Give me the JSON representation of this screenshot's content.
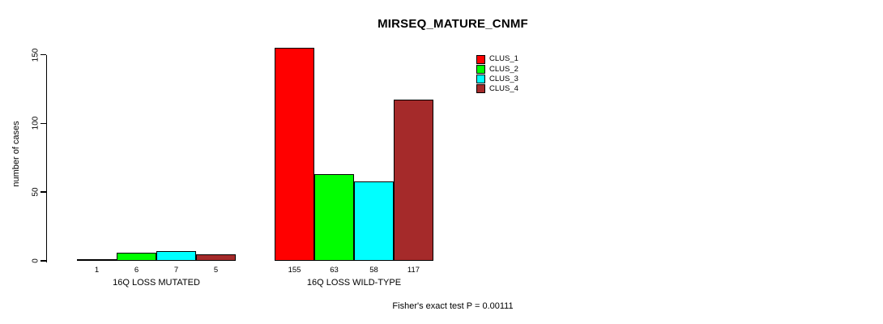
{
  "page": {
    "background_color": "#ffffff",
    "text_color": "#000000"
  },
  "chart_data": {
    "type": "bar",
    "title": "MIRSEQ_MATURE_CNMF",
    "ylabel": "number of cases",
    "xlabel": "",
    "categories": [
      "16Q LOSS MUTATED",
      "16Q LOSS WILD-TYPE"
    ],
    "series": [
      {
        "name": "CLUS_1",
        "color": "#ff0000",
        "values": [
          1,
          155
        ]
      },
      {
        "name": "CLUS_2",
        "color": "#00ff00",
        "values": [
          6,
          63
        ]
      },
      {
        "name": "CLUS_3",
        "color": "#00ffff",
        "values": [
          7,
          58
        ]
      },
      {
        "name": "CLUS_4",
        "color": "#a52a2a",
        "values": [
          5,
          117
        ]
      }
    ],
    "ylim": [
      0,
      150
    ],
    "yticks": [
      0,
      50,
      100,
      150
    ],
    "grid": false,
    "legend_position": "top-right",
    "bar_value_labels_shown": true,
    "caption": "Fisher's exact test P = 0.00111"
  }
}
